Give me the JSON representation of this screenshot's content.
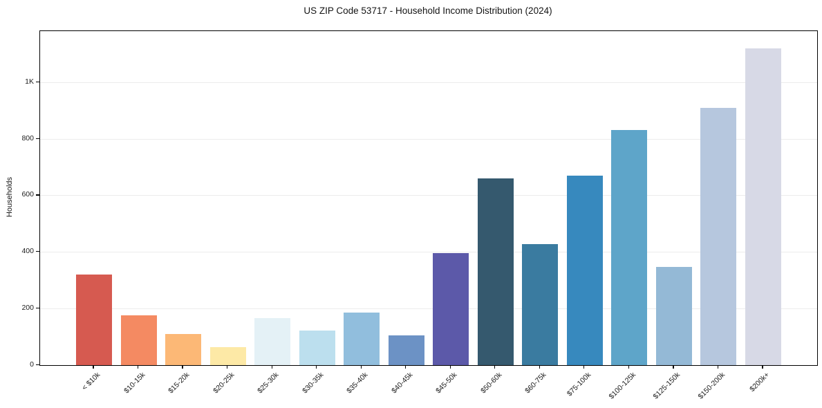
{
  "title": "US ZIP Code 53717 - Household Income Distribution (2024)",
  "chart_data": {
    "type": "bar",
    "title": "US ZIP Code 53717 - Household Income Distribution (2024)",
    "xlabel": "",
    "ylabel": "Households",
    "categories": [
      "< $10k",
      "$10-15k",
      "$15-20k",
      "$20-25k",
      "$25-30k",
      "$30-35k",
      "$35-40k",
      "$40-45k",
      "$45-50k",
      "$50-60k",
      "$60-75k",
      "$75-100k",
      "$100-125k",
      "$125-150k",
      "$150-200k",
      "$200k+"
    ],
    "values": [
      320,
      176,
      110,
      63,
      166,
      122,
      186,
      105,
      397,
      660,
      427,
      670,
      830,
      346,
      910,
      1120
    ],
    "bar_colors": [
      "#d65a50",
      "#f48a62",
      "#fcb876",
      "#fde9a6",
      "#e4f1f6",
      "#bcdfee",
      "#91bedd",
      "#6c92c5",
      "#5c59a9",
      "#35596e",
      "#3a7ba0",
      "#3789be",
      "#5ea5c9",
      "#94b9d6",
      "#b6c7de",
      "#d7d9e6"
    ],
    "ylim": [
      0,
      1180
    ],
    "yticks": [
      {
        "value": 0,
        "label": "0"
      },
      {
        "value": 200,
        "label": "200"
      },
      {
        "value": 400,
        "label": "400"
      },
      {
        "value": 600,
        "label": "600"
      },
      {
        "value": 800,
        "label": "800"
      },
      {
        "value": 1000,
        "label": "1K"
      }
    ],
    "grid": "horizontal",
    "legend": "none",
    "colors": {
      "gridline": "#ececec",
      "axis_border": "#000000",
      "text": "#1a1a1a",
      "background": "#ffffff"
    }
  }
}
